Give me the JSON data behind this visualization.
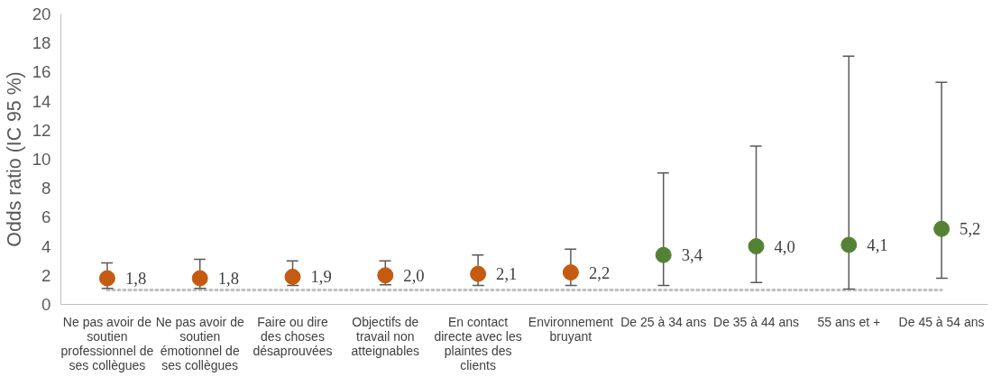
{
  "chart_data": {
    "type": "scatter",
    "ylabel": "Odds ratio (IC 95 %)",
    "categories": [
      "Ne pas avoir de soutien professionnel de ses collègues",
      "Ne pas avoir de soutien émotionnel de ses collègues",
      "Faire ou dire des choses désaprouvées",
      "Objectifs de travail non atteignables",
      "En contact directe avec les plaintes des clients",
      "Environnement bruyant",
      "De 25 à 34 ans",
      "De 35 à 44 ans",
      "55 ans et +",
      "De 45 à 54 ans"
    ],
    "values": [
      1.8,
      1.8,
      1.9,
      2.0,
      2.1,
      2.2,
      3.4,
      4.0,
      4.1,
      5.2
    ],
    "value_labels": [
      "1,8",
      "1,8",
      "1,9",
      "2,0",
      "2,1",
      "2,2",
      "3,4",
      "4,0",
      "4,1",
      "5,2"
    ],
    "colors": [
      "#c55a11",
      "#c55a11",
      "#c55a11",
      "#c55a11",
      "#c55a11",
      "#c55a11",
      "#548235",
      "#548235",
      "#548235",
      "#548235"
    ],
    "errors": [
      [
        1.1,
        2.85
      ],
      [
        1.1,
        3.1
      ],
      [
        1.3,
        3.0
      ],
      [
        1.35,
        3.0
      ],
      [
        1.3,
        3.4
      ],
      [
        1.3,
        3.8
      ],
      [
        1.3,
        9.05
      ],
      [
        1.5,
        10.9
      ],
      [
        1.05,
        17.1
      ],
      [
        1.8,
        15.3
      ]
    ],
    "ylim": [
      0,
      20
    ],
    "yticks": [
      0,
      2,
      4,
      6,
      8,
      10,
      12,
      14,
      16,
      18,
      20
    ],
    "ref_lines": [
      {
        "axis": "y",
        "value": 1,
        "color": "#bfbfbf",
        "line_style": "dotted"
      }
    ],
    "marker": "circle",
    "grid": false
  }
}
